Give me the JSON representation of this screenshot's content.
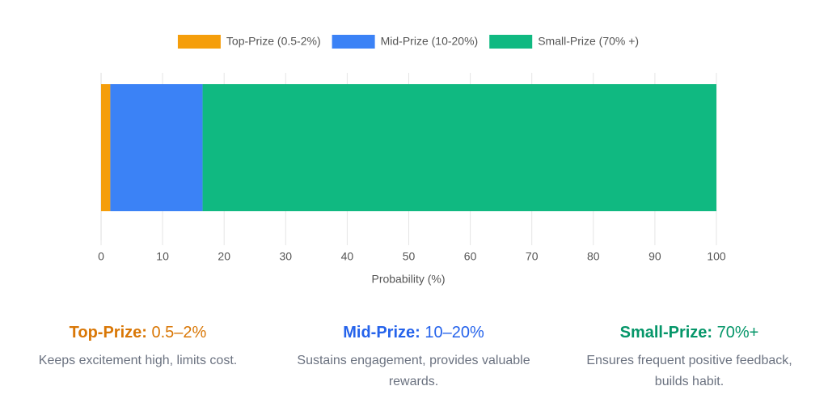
{
  "chart_data": {
    "type": "stacked-bar",
    "orientation": "horizontal",
    "categories": [
      null
    ],
    "series": [
      {
        "name": "Top-Prize (0.5-2%)",
        "color": "#f59e0b",
        "values": [
          1.5
        ]
      },
      {
        "name": "Mid-Prize (10-20%)",
        "color": "#3b82f6",
        "values": [
          15
        ]
      },
      {
        "name": "Small-Prize (70% +)",
        "color": "#10b981",
        "values": [
          83.5
        ]
      }
    ],
    "xlim": [
      0,
      100
    ],
    "xticks": [
      0,
      10,
      20,
      30,
      40,
      50,
      60,
      70,
      80,
      90,
      100
    ],
    "x_label": "Probability (%)",
    "grid": true,
    "legend": "top"
  },
  "cards": [
    {
      "label": "Top-Prize:",
      "range": "0.5–2%",
      "color": "#d97706",
      "text": "Keeps excitement high, limits cost."
    },
    {
      "label": "Mid-Prize:",
      "range": "10–20%",
      "color": "#2563eb",
      "text": "Sustains engagement, provides valuable rewards."
    },
    {
      "label": "Small-Prize:",
      "range": "70%+",
      "color": "#059669",
      "text": "Ensures frequent positive feedback, builds habit."
    }
  ]
}
